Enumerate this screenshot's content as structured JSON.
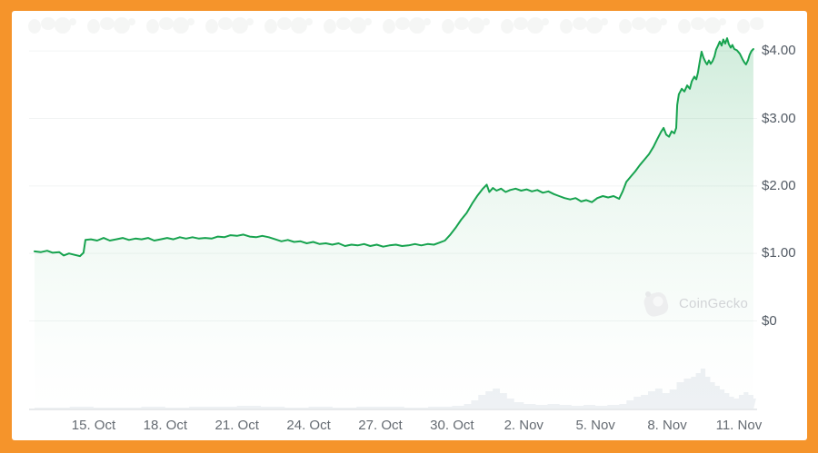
{
  "frame": {
    "border_color": "#F5942B",
    "card_color": "#FFFFFF"
  },
  "watermark": {
    "text": "CoinGecko"
  },
  "chart_data": {
    "type": "area",
    "title": "",
    "xlabel": "",
    "ylabel": "",
    "currency": "USD",
    "x_axis": {
      "unit": "days_since_oct_12",
      "range": [
        0.53,
        30.65
      ],
      "ticks": [
        {
          "label": "15. Oct",
          "day": 3
        },
        {
          "label": "18. Oct",
          "day": 6
        },
        {
          "label": "21. Oct",
          "day": 9
        },
        {
          "label": "24. Oct",
          "day": 12
        },
        {
          "label": "27. Oct",
          "day": 15
        },
        {
          "label": "30. Oct",
          "day": 18
        },
        {
          "label": "2. Nov",
          "day": 21
        },
        {
          "label": "5. Nov",
          "day": 24
        },
        {
          "label": "8. Nov",
          "day": 27
        },
        {
          "label": "11. Nov",
          "day": 30
        }
      ]
    },
    "y_axis": {
      "position": "right",
      "ylim": [
        0,
        4.3
      ],
      "ticks": [
        {
          "label": "$4.00",
          "value": 4
        },
        {
          "label": "$3.00",
          "value": 3
        },
        {
          "label": "$2.00",
          "value": 2
        },
        {
          "label": "$1.00",
          "value": 1
        },
        {
          "label": "$0",
          "value": 0
        }
      ]
    },
    "grid": true,
    "legend": "none",
    "line_color": "#17A34F",
    "fill_color": "#17A34F",
    "grid_color": "#F2F4F4",
    "baseline_color": "#E8EAEC",
    "volume_color": "#EEF1F4",
    "series": [
      {
        "name": "price_usd",
        "points": [
          [
            0.53,
            1.03
          ],
          [
            0.8,
            1.02
          ],
          [
            1.06,
            1.04
          ],
          [
            1.29,
            1.01
          ],
          [
            1.56,
            1.02
          ],
          [
            1.75,
            0.97
          ],
          [
            1.97,
            1.0
          ],
          [
            2.2,
            0.98
          ],
          [
            2.43,
            0.96
          ],
          [
            2.58,
            1.01
          ],
          [
            2.66,
            1.2
          ],
          [
            2.89,
            1.21
          ],
          [
            3.15,
            1.19
          ],
          [
            3.42,
            1.23
          ],
          [
            3.68,
            1.19
          ],
          [
            3.95,
            1.21
          ],
          [
            4.22,
            1.23
          ],
          [
            4.48,
            1.2
          ],
          [
            4.75,
            1.22
          ],
          [
            5.01,
            1.21
          ],
          [
            5.28,
            1.23
          ],
          [
            5.54,
            1.19
          ],
          [
            5.81,
            1.21
          ],
          [
            6.08,
            1.23
          ],
          [
            6.34,
            1.21
          ],
          [
            6.61,
            1.24
          ],
          [
            6.87,
            1.22
          ],
          [
            7.14,
            1.24
          ],
          [
            7.41,
            1.22
          ],
          [
            7.67,
            1.23
          ],
          [
            7.94,
            1.22
          ],
          [
            8.2,
            1.25
          ],
          [
            8.47,
            1.24
          ],
          [
            8.73,
            1.27
          ],
          [
            9.0,
            1.26
          ],
          [
            9.27,
            1.28
          ],
          [
            9.53,
            1.25
          ],
          [
            9.8,
            1.24
          ],
          [
            10.06,
            1.26
          ],
          [
            10.33,
            1.24
          ],
          [
            10.6,
            1.21
          ],
          [
            10.86,
            1.18
          ],
          [
            11.13,
            1.2
          ],
          [
            11.39,
            1.17
          ],
          [
            11.66,
            1.18
          ],
          [
            11.92,
            1.15
          ],
          [
            12.19,
            1.17
          ],
          [
            12.46,
            1.14
          ],
          [
            12.72,
            1.15
          ],
          [
            12.99,
            1.13
          ],
          [
            13.25,
            1.15
          ],
          [
            13.52,
            1.11
          ],
          [
            13.79,
            1.13
          ],
          [
            14.05,
            1.12
          ],
          [
            14.32,
            1.14
          ],
          [
            14.58,
            1.11
          ],
          [
            14.85,
            1.13
          ],
          [
            15.12,
            1.1
          ],
          [
            15.38,
            1.12
          ],
          [
            15.65,
            1.13
          ],
          [
            15.91,
            1.11
          ],
          [
            16.18,
            1.12
          ],
          [
            16.45,
            1.14
          ],
          [
            16.71,
            1.12
          ],
          [
            16.98,
            1.14
          ],
          [
            17.24,
            1.13
          ],
          [
            17.47,
            1.16
          ],
          [
            17.7,
            1.19
          ],
          [
            17.93,
            1.28
          ],
          [
            18.15,
            1.38
          ],
          [
            18.38,
            1.5
          ],
          [
            18.61,
            1.6
          ],
          [
            18.84,
            1.74
          ],
          [
            19.07,
            1.86
          ],
          [
            19.29,
            1.96
          ],
          [
            19.45,
            2.02
          ],
          [
            19.56,
            1.91
          ],
          [
            19.71,
            1.97
          ],
          [
            19.86,
            1.93
          ],
          [
            20.05,
            1.96
          ],
          [
            20.24,
            1.91
          ],
          [
            20.43,
            1.94
          ],
          [
            20.66,
            1.96
          ],
          [
            20.89,
            1.93
          ],
          [
            21.12,
            1.95
          ],
          [
            21.34,
            1.92
          ],
          [
            21.57,
            1.94
          ],
          [
            21.8,
            1.9
          ],
          [
            22.03,
            1.92
          ],
          [
            22.26,
            1.88
          ],
          [
            22.48,
            1.85
          ],
          [
            22.71,
            1.82
          ],
          [
            22.94,
            1.8
          ],
          [
            23.17,
            1.82
          ],
          [
            23.4,
            1.77
          ],
          [
            23.62,
            1.79
          ],
          [
            23.85,
            1.76
          ],
          [
            24.08,
            1.82
          ],
          [
            24.31,
            1.85
          ],
          [
            24.53,
            1.83
          ],
          [
            24.76,
            1.85
          ],
          [
            24.99,
            1.81
          ],
          [
            25.14,
            1.92
          ],
          [
            25.29,
            2.06
          ],
          [
            25.48,
            2.14
          ],
          [
            25.67,
            2.22
          ],
          [
            25.86,
            2.31
          ],
          [
            26.05,
            2.39
          ],
          [
            26.24,
            2.47
          ],
          [
            26.43,
            2.58
          ],
          [
            26.58,
            2.69
          ],
          [
            26.74,
            2.8
          ],
          [
            26.85,
            2.86
          ],
          [
            26.96,
            2.76
          ],
          [
            27.08,
            2.73
          ],
          [
            27.19,
            2.81
          ],
          [
            27.3,
            2.78
          ],
          [
            27.38,
            2.86
          ],
          [
            27.42,
            3.2
          ],
          [
            27.49,
            3.36
          ],
          [
            27.61,
            3.44
          ],
          [
            27.72,
            3.4
          ],
          [
            27.84,
            3.49
          ],
          [
            27.95,
            3.44
          ],
          [
            28.03,
            3.55
          ],
          [
            28.14,
            3.62
          ],
          [
            28.22,
            3.58
          ],
          [
            28.29,
            3.68
          ],
          [
            28.37,
            3.85
          ],
          [
            28.44,
            3.99
          ],
          [
            28.52,
            3.9
          ],
          [
            28.6,
            3.84
          ],
          [
            28.67,
            3.8
          ],
          [
            28.75,
            3.86
          ],
          [
            28.82,
            3.81
          ],
          [
            28.9,
            3.85
          ],
          [
            28.98,
            3.92
          ],
          [
            29.05,
            4.02
          ],
          [
            29.13,
            4.08
          ],
          [
            29.2,
            4.14
          ],
          [
            29.28,
            4.08
          ],
          [
            29.35,
            4.17
          ],
          [
            29.43,
            4.11
          ],
          [
            29.51,
            4.19
          ],
          [
            29.58,
            4.1
          ],
          [
            29.66,
            4.05
          ],
          [
            29.73,
            4.09
          ],
          [
            29.81,
            4.03
          ],
          [
            29.92,
            4.01
          ],
          [
            30.04,
            3.96
          ],
          [
            30.15,
            3.88
          ],
          [
            30.23,
            3.83
          ],
          [
            30.3,
            3.8
          ],
          [
            30.38,
            3.86
          ],
          [
            30.45,
            3.94
          ],
          [
            30.53,
            4.0
          ],
          [
            30.61,
            4.03
          ]
        ]
      }
    ],
    "volume": {
      "units": "relative_px_max_45",
      "points": [
        [
          0.53,
          2
        ],
        [
          1,
          2
        ],
        [
          2,
          3
        ],
        [
          3,
          2
        ],
        [
          4,
          2
        ],
        [
          5,
          3
        ],
        [
          6,
          2
        ],
        [
          7,
          3
        ],
        [
          8,
          3
        ],
        [
          9,
          4
        ],
        [
          10,
          3
        ],
        [
          11,
          2
        ],
        [
          12,
          3
        ],
        [
          13,
          2
        ],
        [
          14,
          3
        ],
        [
          15,
          3
        ],
        [
          16,
          2
        ],
        [
          17,
          3
        ],
        [
          17.5,
          3
        ],
        [
          18,
          4
        ],
        [
          18.5,
          6
        ],
        [
          18.8,
          10
        ],
        [
          19.1,
          16
        ],
        [
          19.4,
          20
        ],
        [
          19.7,
          23
        ],
        [
          20,
          18
        ],
        [
          20.3,
          12
        ],
        [
          20.6,
          8
        ],
        [
          21,
          6
        ],
        [
          21.5,
          5
        ],
        [
          22,
          6
        ],
        [
          22.5,
          5
        ],
        [
          23,
          4
        ],
        [
          23.5,
          5
        ],
        [
          24,
          4
        ],
        [
          24.5,
          5
        ],
        [
          25,
          6
        ],
        [
          25.3,
          10
        ],
        [
          25.6,
          14
        ],
        [
          25.9,
          16
        ],
        [
          26.2,
          20
        ],
        [
          26.5,
          23
        ],
        [
          26.8,
          18
        ],
        [
          27.1,
          22
        ],
        [
          27.4,
          30
        ],
        [
          27.7,
          34
        ],
        [
          28,
          36
        ],
        [
          28.2,
          40
        ],
        [
          28.4,
          45
        ],
        [
          28.6,
          36
        ],
        [
          28.8,
          30
        ],
        [
          29,
          26
        ],
        [
          29.2,
          22
        ],
        [
          29.4,
          18
        ],
        [
          29.6,
          14
        ],
        [
          29.8,
          12
        ],
        [
          30,
          16
        ],
        [
          30.2,
          19
        ],
        [
          30.4,
          16
        ],
        [
          30.61,
          12
        ]
      ]
    }
  }
}
